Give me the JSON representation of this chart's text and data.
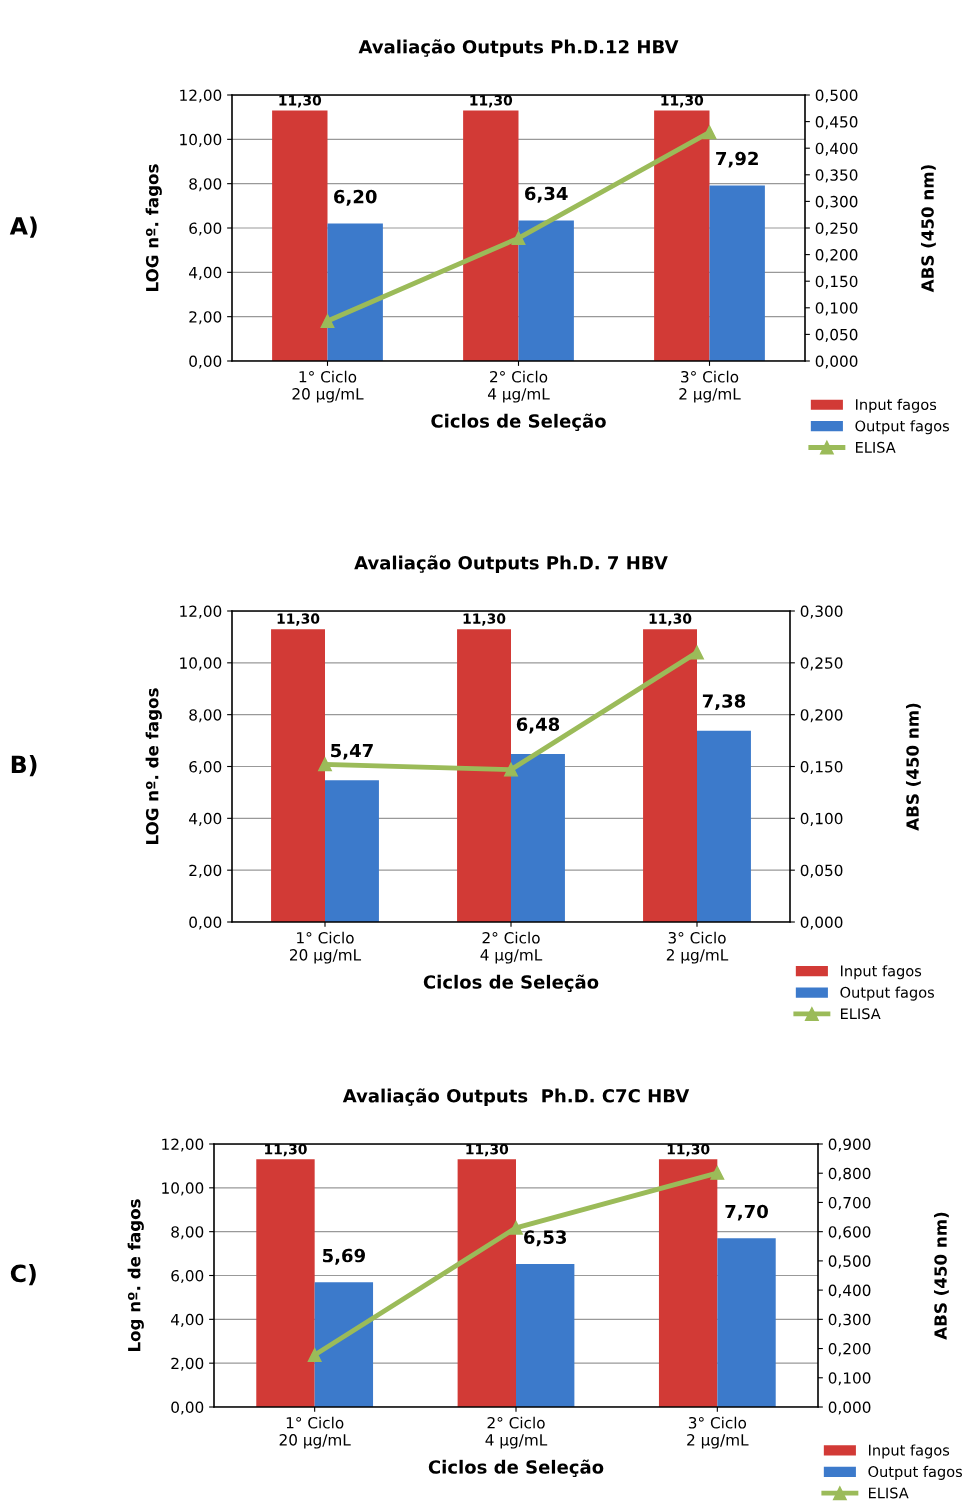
{
  "chart_data": [
    {
      "type": "bar",
      "title": "Avaliação Outputs Ph.D.12 HBV",
      "xlabel": "Ciclos de Seleção",
      "ylabel": "LOG nº. fagos",
      "y2label": "ABS (450 nm)",
      "annotations": [
        "A)"
      ],
      "categories": [
        "1° Ciclo\n20 µg/mL",
        "2° Ciclo\n4 µg/mL",
        "3° Ciclo\n2 µg/mL"
      ],
      "series": [
        {
          "name": "Input fagos",
          "color": "#d23a36",
          "values": [
            11.3,
            11.3,
            11.3
          ],
          "value_labels": [
            "11,30",
            "11,30",
            "11,30"
          ]
        },
        {
          "name": "Output fagos",
          "color": "#3c7acb",
          "values": [
            6.2,
            6.34,
            7.92
          ],
          "value_labels": [
            "6,20",
            "6,34",
            "7,92"
          ]
        },
        {
          "name": "ELISA",
          "type": "line",
          "axis": "y2",
          "color": "#9bbb59",
          "values": [
            0.075,
            0.231,
            0.43
          ]
        }
      ],
      "ylim": [
        0,
        12
      ],
      "yticks": [
        {
          "value": 0,
          "label": "0,00"
        },
        {
          "value": 2,
          "label": "2,00"
        },
        {
          "value": 4,
          "label": "4,00"
        },
        {
          "value": 6,
          "label": "6,00"
        },
        {
          "value": 8,
          "label": "8,00"
        },
        {
          "value": 10,
          "label": "10,00"
        },
        {
          "value": 12,
          "label": "12,00"
        }
      ],
      "y2lim": [
        0,
        0.5
      ],
      "y2ticks": [
        {
          "value": 0,
          "label": "0,000"
        },
        {
          "value": 0.05,
          "label": "0,050"
        },
        {
          "value": 0.1,
          "label": "0,100"
        },
        {
          "value": 0.15,
          "label": "0,150"
        },
        {
          "value": 0.2,
          "label": "0,200"
        },
        {
          "value": 0.25,
          "label": "0,250"
        },
        {
          "value": 0.3,
          "label": "0,300"
        },
        {
          "value": 0.35,
          "label": "0,350"
        },
        {
          "value": 0.4,
          "label": "0,400"
        },
        {
          "value": 0.45,
          "label": "0,450"
        },
        {
          "value": 0.5,
          "label": "0,500"
        }
      ],
      "grid": "y",
      "legend": "bottom right",
      "marker": "triangle"
    },
    {
      "type": "bar",
      "title": "Avaliação Outputs Ph.D. 7 HBV",
      "xlabel": "Ciclos de Seleção",
      "ylabel": "LOG nº. de fagos",
      "y2label": "ABS (450 nm)",
      "annotations": [
        "B)"
      ],
      "categories": [
        "1° Ciclo\n20 µg/mL",
        "2° Ciclo\n4 µg/mL",
        "3° Ciclo\n2 µg/mL"
      ],
      "series": [
        {
          "name": "Input fagos",
          "color": "#d23a36",
          "values": [
            11.3,
            11.3,
            11.3
          ],
          "value_labels": [
            "11,30",
            "11,30",
            "11,30"
          ]
        },
        {
          "name": "Output fagos",
          "color": "#3c7acb",
          "values": [
            5.47,
            6.48,
            7.38
          ],
          "value_labels": [
            "5,47",
            "6,48",
            "7,38"
          ]
        },
        {
          "name": "ELISA",
          "type": "line",
          "axis": "y2",
          "color": "#9bbb59",
          "values": [
            0.152,
            0.147,
            0.26
          ]
        }
      ],
      "ylim": [
        0,
        12
      ],
      "yticks": [
        {
          "value": 0,
          "label": "0,00"
        },
        {
          "value": 2,
          "label": "2,00"
        },
        {
          "value": 4,
          "label": "4,00"
        },
        {
          "value": 6,
          "label": "6,00"
        },
        {
          "value": 8,
          "label": "8,00"
        },
        {
          "value": 10,
          "label": "10,00"
        },
        {
          "value": 12,
          "label": "12,00"
        }
      ],
      "y2lim": [
        0,
        0.3
      ],
      "y2ticks": [
        {
          "value": 0,
          "label": "0,000"
        },
        {
          "value": 0.05,
          "label": "0,050"
        },
        {
          "value": 0.1,
          "label": "0,100"
        },
        {
          "value": 0.15,
          "label": "0,150"
        },
        {
          "value": 0.2,
          "label": "0,200"
        },
        {
          "value": 0.25,
          "label": "0,250"
        },
        {
          "value": 0.3,
          "label": "0,300"
        }
      ],
      "grid": "y",
      "legend": "bottom right",
      "marker": "triangle"
    },
    {
      "type": "bar",
      "title": "Avaliação Outputs  Ph.D. C7C HBV",
      "xlabel": "Ciclos de Seleção",
      "ylabel": "Log nº. de fagos",
      "y2label": "ABS (450 nm)",
      "annotations": [
        "C)"
      ],
      "categories": [
        "1° Ciclo\n20 µg/mL",
        "2° Ciclo\n4 µg/mL",
        "3° Ciclo\n2 µg/mL"
      ],
      "series": [
        {
          "name": "Input fagos",
          "color": "#d23a36",
          "values": [
            11.3,
            11.3,
            11.3
          ],
          "value_labels": [
            "11,30",
            "11,30",
            "11,30"
          ]
        },
        {
          "name": "Output fagos",
          "color": "#3c7acb",
          "values": [
            5.69,
            6.53,
            7.7
          ],
          "value_labels": [
            "5,69",
            "6,53",
            "7,70"
          ]
        },
        {
          "name": "ELISA",
          "type": "line",
          "axis": "y2",
          "color": "#9bbb59",
          "values": [
            0.178,
            0.613,
            0.801
          ]
        }
      ],
      "ylim": [
        0,
        12
      ],
      "yticks": [
        {
          "value": 0,
          "label": "0,00"
        },
        {
          "value": 2,
          "label": "2,00"
        },
        {
          "value": 4,
          "label": "4,00"
        },
        {
          "value": 6,
          "label": "6,00"
        },
        {
          "value": 8,
          "label": "8,00"
        },
        {
          "value": 10,
          "label": "10,00"
        },
        {
          "value": 12,
          "label": "12,00"
        }
      ],
      "y2lim": [
        0,
        0.9
      ],
      "y2ticks": [
        {
          "value": 0,
          "label": "0,000"
        },
        {
          "value": 0.1,
          "label": "0,100"
        },
        {
          "value": 0.2,
          "label": "0,200"
        },
        {
          "value": 0.3,
          "label": "0,300"
        },
        {
          "value": 0.4,
          "label": "0,400"
        },
        {
          "value": 0.5,
          "label": "0,500"
        },
        {
          "value": 0.6,
          "label": "0,600"
        },
        {
          "value": 0.7,
          "label": "0,700"
        },
        {
          "value": 0.8,
          "label": "0,800"
        },
        {
          "value": 0.9,
          "label": "0,900"
        }
      ],
      "grid": "y",
      "legend": "bottom right",
      "marker": "triangle"
    }
  ]
}
